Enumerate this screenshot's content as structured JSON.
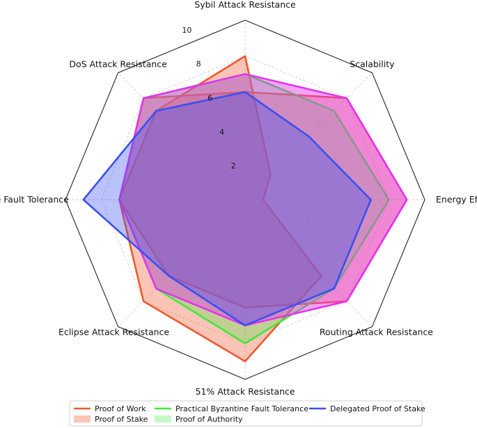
{
  "chart_data": {
    "type": "radar",
    "title": "",
    "axes": [
      "Sybil Attack Resistance",
      "Scalability",
      "Energy Efficiency",
      "Routing Attack Resistance",
      "51% Attack Resistance",
      "Eclipse Attack Resistance",
      "Byzantine Fault Tolerance",
      "DoS Attack Resistance"
    ],
    "rlim": [
      0,
      10
    ],
    "rticks": [
      2,
      4,
      6,
      8,
      10
    ],
    "grid": true,
    "legend_position": "bottom",
    "series": [
      {
        "name": "Proof of Work",
        "values": [
          8,
          2,
          1,
          6,
          9,
          8,
          7,
          7
        ],
        "color": "#f0582e",
        "fill": true,
        "fill_opacity": 0.35
      },
      {
        "name": "Proof of Stake",
        "values": [
          6,
          8,
          9,
          8,
          6,
          6,
          7,
          8
        ],
        "color": "#f0582e",
        "fill": true,
        "fill_opacity": 0.3,
        "legend_style": "patch"
      },
      {
        "name": "Practical Byzantine Fault Tolerance",
        "values": [
          7,
          7,
          8,
          7,
          8,
          7,
          7,
          8
        ],
        "color": "#3ee83e",
        "fill": true,
        "fill_opacity": 0.3
      },
      {
        "name": "Proof of Authority",
        "values": [
          7,
          8,
          9,
          8,
          7,
          7,
          7,
          8
        ],
        "color": "#e333f0",
        "fill": true,
        "fill_opacity": 0.45,
        "legend_style": "patch",
        "legend_color": "#8ef08e"
      },
      {
        "name": "Delegated Proof of Stake",
        "values": [
          6,
          5,
          7,
          7,
          7,
          6,
          9,
          7
        ],
        "color": "#3a50f0",
        "fill": true,
        "fill_opacity": 0.35
      }
    ]
  }
}
